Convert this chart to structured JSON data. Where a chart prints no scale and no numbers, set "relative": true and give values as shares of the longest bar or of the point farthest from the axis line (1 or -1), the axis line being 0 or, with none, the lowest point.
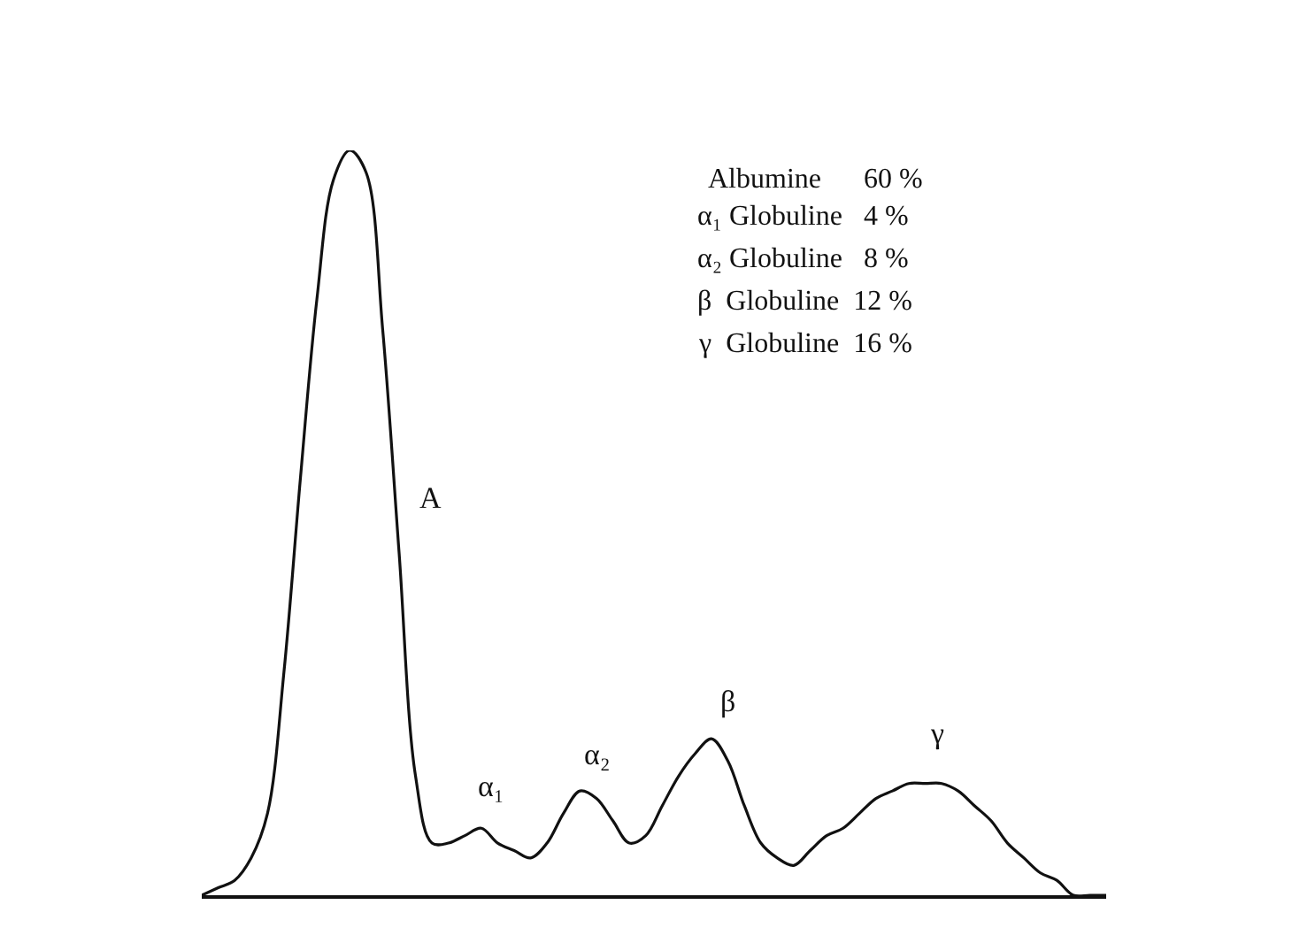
{
  "chart_data": {
    "type": "line",
    "relative": true,
    "categories": [
      null,
      null,
      null,
      null,
      null,
      null,
      null,
      null,
      null,
      null,
      null,
      null,
      null,
      null,
      null,
      null,
      null,
      null,
      null,
      null,
      null,
      null,
      null,
      null,
      null,
      null,
      null,
      null,
      null,
      null,
      null,
      null,
      null,
      null,
      null,
      null,
      null,
      null,
      null,
      null,
      null,
      null,
      null,
      null,
      null,
      null,
      null,
      null,
      null,
      null,
      null,
      null,
      null,
      null,
      null,
      null
    ],
    "series": [
      {
        "color": "#111111",
        "values": [
          0,
          0.01,
          0.02,
          0.05,
          0.11,
          0.3,
          0.56,
          0.8,
          0.96,
          1.0,
          0.97,
          0.76,
          0.46,
          0.16,
          0.07,
          0.07,
          0.08,
          0.09,
          0.07,
          0.06,
          0.05,
          0.07,
          0.11,
          0.14,
          0.13,
          0.1,
          0.07,
          0.08,
          0.12,
          0.16,
          0.19,
          0.21,
          0.18,
          0.12,
          0.07,
          0.05,
          0.04,
          0.06,
          0.08,
          0.09,
          0.11,
          0.13,
          0.14,
          0.15,
          0.15,
          0.15,
          0.14,
          0.12,
          0.1,
          0.07,
          0.05,
          0.03,
          0.02,
          0,
          0,
          0
        ]
      }
    ],
    "annotations": [
      "Albumine      60 %",
      "α₁ Globuline   4 %",
      "α₂ Globuline   8 %",
      "β  Globuline  12 %",
      "γ  Globuline  16 %",
      "A",
      "α₁",
      "α₂",
      "β",
      "γ"
    ],
    "marker": "none",
    "line_style": "solid"
  }
}
